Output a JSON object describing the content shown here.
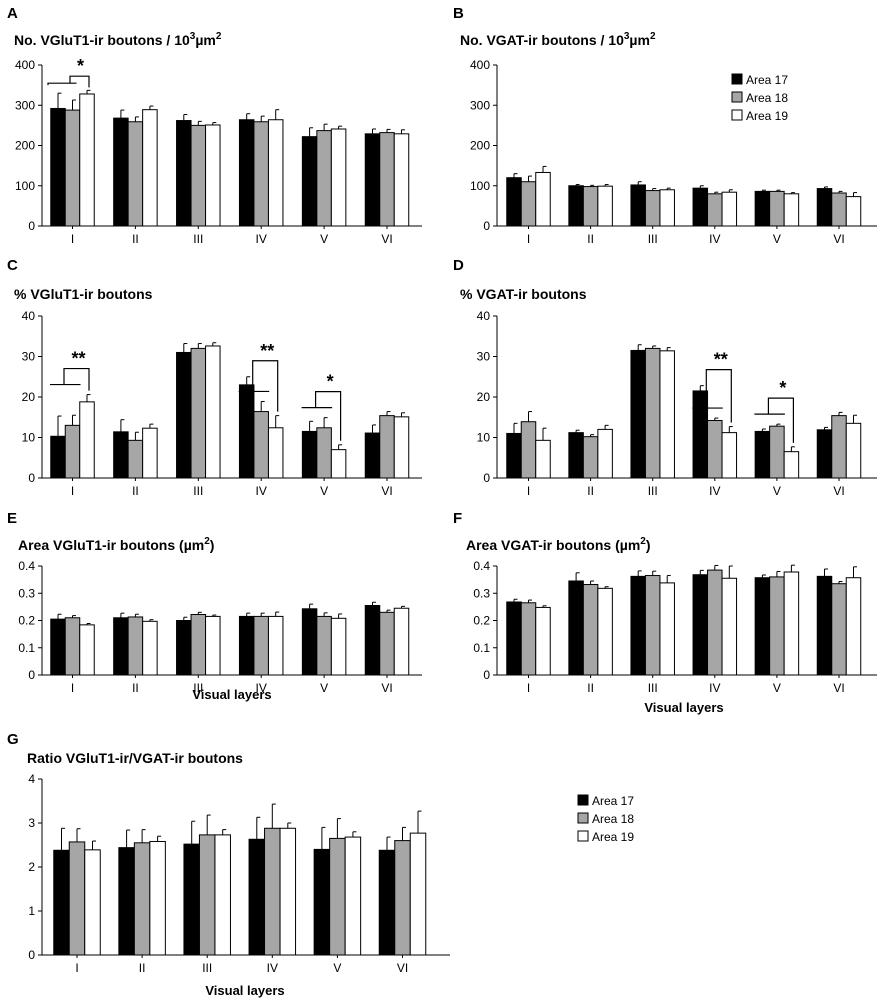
{
  "legend": {
    "entries": [
      "Area 17",
      "Area 18",
      "Area 19"
    ]
  },
  "colors": {
    "area17": "#000000",
    "area18": "#a6a6a6",
    "area19": "#ffffff"
  },
  "chart_data": [
    {
      "panel": "A",
      "type": "bar",
      "title": "No. VGluT1-ir boutons / 10",
      "title_sup": "3",
      "title_end": "µm",
      "title_sup2": "2",
      "categories": [
        "I",
        "II",
        "III",
        "IV",
        "V",
        "VI"
      ],
      "ylim": [
        0,
        400
      ],
      "yticks": [
        0,
        100,
        200,
        300,
        400
      ],
      "xlabel": "",
      "series": [
        {
          "name": "Area 17",
          "values": [
            292,
            268,
            262,
            264,
            222,
            229
          ],
          "errors": [
            38,
            20,
            15,
            15,
            22,
            12
          ]
        },
        {
          "name": "Area 18",
          "values": [
            288,
            259,
            250,
            259,
            237,
            232
          ],
          "errors": [
            25,
            12,
            10,
            14,
            16,
            8
          ]
        },
        {
          "name": "Area 19",
          "values": [
            328,
            289,
            251,
            264,
            241,
            229
          ],
          "errors": [
            9,
            9,
            6,
            25,
            7,
            10
          ]
        }
      ],
      "significance": [
        {
          "category": 0,
          "label": "*"
        }
      ]
    },
    {
      "panel": "B",
      "type": "bar",
      "title": "No. VGAT-ir boutons / 10",
      "title_sup": "3",
      "title_end": "µm",
      "title_sup2": "2",
      "categories": [
        "I",
        "II",
        "III",
        "IV",
        "V",
        "VI"
      ],
      "ylim": [
        0,
        400
      ],
      "yticks": [
        0,
        100,
        200,
        300,
        400
      ],
      "xlabel": "",
      "legend_position": "top-right",
      "series": [
        {
          "name": "Area 17",
          "values": [
            120,
            100,
            102,
            94,
            86,
            93
          ],
          "errors": [
            10,
            3,
            8,
            6,
            3,
            4
          ]
        },
        {
          "name": "Area 18",
          "values": [
            110,
            98,
            88,
            80,
            86,
            82
          ],
          "errors": [
            14,
            3,
            5,
            4,
            3,
            4
          ]
        },
        {
          "name": "Area 19",
          "values": [
            133,
            99,
            90,
            84,
            80,
            73
          ],
          "errors": [
            15,
            4,
            4,
            6,
            3,
            10
          ]
        }
      ]
    },
    {
      "panel": "C",
      "type": "bar",
      "title": "% VGluT1-ir boutons",
      "categories": [
        "I",
        "II",
        "III",
        "IV",
        "V",
        "VI"
      ],
      "ylim": [
        0,
        40
      ],
      "yticks": [
        0,
        10,
        20,
        30,
        40
      ],
      "xlabel": "",
      "series": [
        {
          "name": "Area 17",
          "values": [
            10.3,
            11.4,
            31,
            23,
            11.5,
            11.1
          ],
          "errors": [
            5,
            3,
            2.2,
            2,
            2.5,
            2
          ]
        },
        {
          "name": "Area 18",
          "values": [
            13,
            9.3,
            32,
            16.4,
            12.4,
            15.4
          ],
          "errors": [
            2.5,
            2,
            1.2,
            2.5,
            2.5,
            1
          ]
        },
        {
          "name": "Area 19",
          "values": [
            18.8,
            12.3,
            32.6,
            12.4,
            7,
            15.1
          ],
          "errors": [
            1.8,
            1,
            0.8,
            3,
            1.2,
            1
          ]
        }
      ],
      "significance": [
        {
          "category": 0,
          "label": "**"
        },
        {
          "category": 3,
          "label": "**"
        },
        {
          "category": 4,
          "label": "*"
        }
      ]
    },
    {
      "panel": "D",
      "type": "bar",
      "title": "% VGAT-ir boutons",
      "categories": [
        "I",
        "II",
        "III",
        "IV",
        "V",
        "VI"
      ],
      "ylim": [
        0,
        40
      ],
      "yticks": [
        0,
        10,
        20,
        30,
        40
      ],
      "xlabel": "",
      "series": [
        {
          "name": "Area 17",
          "values": [
            11,
            11.2,
            31.5,
            21.5,
            11.5,
            11.9
          ],
          "errors": [
            2.5,
            0.6,
            1.4,
            1.3,
            0.6,
            0.6
          ]
        },
        {
          "name": "Area 18",
          "values": [
            13.9,
            10.2,
            32,
            14.2,
            12.8,
            15.4
          ],
          "errors": [
            2.5,
            0.5,
            0.6,
            0.6,
            0.5,
            0.8
          ]
        },
        {
          "name": "Area 19",
          "values": [
            9.3,
            12,
            31.4,
            11.2,
            6.5,
            13.5
          ],
          "errors": [
            3,
            1,
            0.8,
            1.5,
            1.2,
            2
          ]
        }
      ],
      "significance": [
        {
          "category": 3,
          "label": "**"
        },
        {
          "category": 4,
          "label": "*"
        }
      ]
    },
    {
      "panel": "E",
      "type": "bar",
      "title": "Area VGluT1-ir boutons (",
      "title_end": "µm",
      "title_sup2": "2",
      "title_close": ")",
      "categories": [
        "I",
        "II",
        "III",
        "IV",
        "V",
        "VI"
      ],
      "ylim": [
        0,
        0.4
      ],
      "yticks": [
        "0",
        "0.1",
        "0.2",
        "0.3",
        "0.4"
      ],
      "xlabel": "Visual layers",
      "series": [
        {
          "name": "Area 17",
          "values": [
            0.205,
            0.21,
            0.2,
            0.215,
            0.243,
            0.255
          ],
          "errors": [
            0.018,
            0.017,
            0.012,
            0.012,
            0.017,
            0.012
          ]
        },
        {
          "name": "Area 18",
          "values": [
            0.21,
            0.213,
            0.222,
            0.215,
            0.215,
            0.23
          ],
          "errors": [
            0.008,
            0.01,
            0.008,
            0.012,
            0.013,
            0.008
          ]
        },
        {
          "name": "Area 19",
          "values": [
            0.184,
            0.197,
            0.215,
            0.215,
            0.208,
            0.245
          ],
          "errors": [
            0.005,
            0.006,
            0.005,
            0.016,
            0.016,
            0.007
          ]
        }
      ]
    },
    {
      "panel": "F",
      "type": "bar",
      "title": "Area VGAT-ir boutons (",
      "title_end": "µm",
      "title_sup2": "2",
      "title_close": ")",
      "categories": [
        "I",
        "II",
        "III",
        "IV",
        "V",
        "VI"
      ],
      "ylim": [
        0,
        0.4
      ],
      "yticks": [
        "0",
        "0.1",
        "0.2",
        "0.3",
        "0.4"
      ],
      "xlabel": "Visual layers",
      "series": [
        {
          "name": "Area 17",
          "values": [
            0.268,
            0.345,
            0.362,
            0.368,
            0.357,
            0.362
          ],
          "errors": [
            0.01,
            0.03,
            0.02,
            0.016,
            0.01,
            0.027
          ]
        },
        {
          "name": "Area 18",
          "values": [
            0.265,
            0.332,
            0.365,
            0.385,
            0.36,
            0.335
          ],
          "errors": [
            0.01,
            0.013,
            0.016,
            0.017,
            0.02,
            0.008
          ]
        },
        {
          "name": "Area 19",
          "values": [
            0.248,
            0.318,
            0.338,
            0.355,
            0.378,
            0.357
          ],
          "errors": [
            0.006,
            0.006,
            0.027,
            0.045,
            0.025,
            0.04
          ]
        }
      ]
    },
    {
      "panel": "G",
      "type": "bar",
      "title": "Ratio VGluT1-ir/VGAT-ir boutons",
      "categories": [
        "I",
        "II",
        "III",
        "IV",
        "V",
        "VI"
      ],
      "ylim": [
        0,
        4
      ],
      "yticks": [
        0,
        1,
        2,
        3,
        4
      ],
      "xlabel": "Visual layers",
      "legend_position": "right",
      "series": [
        {
          "name": "Area 17",
          "values": [
            2.38,
            2.44,
            2.52,
            2.63,
            2.4,
            2.38
          ],
          "errors": [
            0.5,
            0.4,
            0.52,
            0.5,
            0.5,
            0.3
          ]
        },
        {
          "name": "Area 18",
          "values": [
            2.57,
            2.55,
            2.73,
            2.88,
            2.65,
            2.6
          ],
          "errors": [
            0.3,
            0.3,
            0.45,
            0.55,
            0.45,
            0.3
          ]
        },
        {
          "name": "Area 19",
          "values": [
            2.39,
            2.58,
            2.73,
            2.88,
            2.68,
            2.77
          ],
          "errors": [
            0.2,
            0.12,
            0.12,
            0.12,
            0.12,
            0.5
          ]
        }
      ]
    }
  ]
}
